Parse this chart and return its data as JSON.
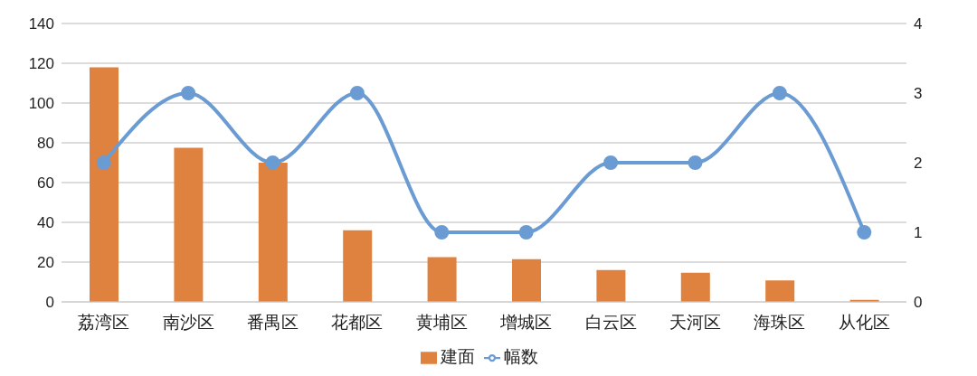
{
  "chart_data": {
    "type": "bar",
    "categories": [
      "荔湾区",
      "南沙区",
      "番禺区",
      "花都区",
      "黄埔区",
      "增城区",
      "白云区",
      "天河区",
      "海珠区",
      "从化区"
    ],
    "series": [
      {
        "name": "建面",
        "color": "#e0823f",
        "values": [
          118,
          77.5,
          70,
          36,
          22.5,
          21.5,
          16,
          14.7,
          10.8,
          1
        ]
      },
      {
        "name": "幅数",
        "type": "line",
        "axis": "y2",
        "color": "#6a9bd3",
        "marker": "circle",
        "values": [
          2,
          3,
          2,
          3,
          1,
          1,
          2,
          2,
          3,
          1
        ]
      }
    ],
    "ylim": [
      0,
      140
    ],
    "yticks": [
      0,
      20,
      40,
      60,
      80,
      100,
      120,
      140
    ],
    "y2lim": [
      0,
      4
    ],
    "y2ticks": [
      0,
      1,
      2,
      3,
      4
    ],
    "grid": "y",
    "legend": "bottom"
  }
}
